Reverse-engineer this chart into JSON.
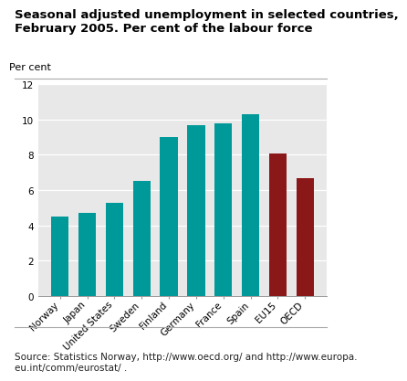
{
  "categories": [
    "Norway",
    "Japan",
    "United States",
    "Sweden",
    "Finland",
    "Germany",
    "France",
    "Spain",
    "EU15",
    "OECD"
  ],
  "values": [
    4.5,
    4.7,
    5.3,
    6.5,
    9.0,
    9.7,
    9.8,
    10.3,
    8.1,
    6.7
  ],
  "bar_colors": [
    "#009999",
    "#009999",
    "#009999",
    "#009999",
    "#009999",
    "#009999",
    "#009999",
    "#009999",
    "#8b1818",
    "#8b1818"
  ],
  "title": "Seasonal adjusted unemployment in selected countries,\nFebruary 2005. Per cent of the labour force",
  "ylabel": "Per cent",
  "ylim": [
    0,
    12
  ],
  "yticks": [
    0,
    2,
    4,
    6,
    8,
    10,
    12
  ],
  "source_text": "Source: Statistics Norway, http://www.oecd.org/ and http://www.europa.\neu.int/comm/eurostat/ .",
  "title_fontsize": 9.5,
  "ylabel_fontsize": 8,
  "tick_fontsize": 7.5,
  "source_fontsize": 7.5,
  "bg_color": "#e8e8e8"
}
